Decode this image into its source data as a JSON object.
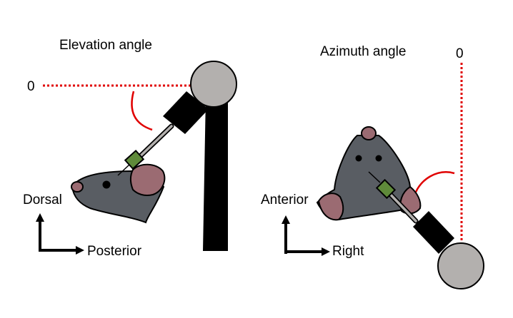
{
  "left_panel": {
    "title": "Elevation angle",
    "zero_label": "0",
    "axis_vertical": "Dorsal",
    "axis_horizontal": "Posterior"
  },
  "right_panel": {
    "title": "Azimuth angle",
    "zero_label": "0",
    "axis_vertical": "Anterior",
    "axis_horizontal": "Right"
  },
  "colors": {
    "mouse_body": "#595d63",
    "mouse_ear": "#9b6b72",
    "joint": "#b3b0ae",
    "arm": "#000000",
    "reference_line": "#e00000",
    "angle_arc": "#e00000",
    "electrode_clip": "#5f8a3a"
  }
}
